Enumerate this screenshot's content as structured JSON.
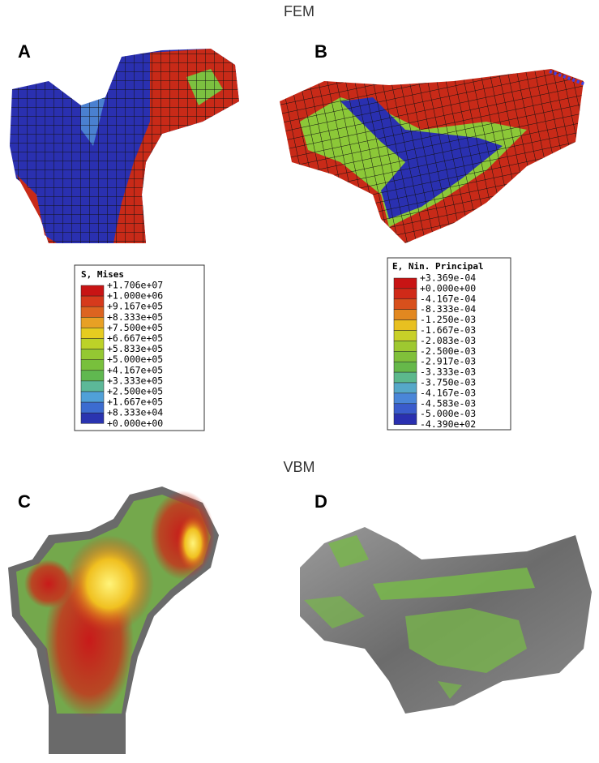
{
  "sections": [
    {
      "title": "FEM",
      "panels": [
        {
          "label": "A",
          "legend": {
            "title": "S, Mises",
            "labels": [
              "+1.706e+07",
              "+1.000e+06",
              "+9.167e+05",
              "+8.333e+05",
              "+7.500e+05",
              "+6.667e+05",
              "+5.833e+05",
              "+5.000e+05",
              "+4.167e+05",
              "+3.333e+05",
              "+2.500e+05",
              "+1.667e+05",
              "+8.333e+04",
              "+0.000e+00"
            ],
            "colors": [
              "#c81414",
              "#d63a1c",
              "#dc6420",
              "#e8a024",
              "#e6cc20",
              "#bcd228",
              "#94c832",
              "#78c03c",
              "#60b850",
              "#5cb898",
              "#50a0d8",
              "#3c6cd0",
              "#2a34b0"
            ]
          }
        },
        {
          "label": "B",
          "legend": {
            "title": "E, Nin. Principal",
            "labels": [
              "+3.369e-04",
              "+0.000e+00",
              "-4.167e-04",
              "-8.333e-04",
              "-1.250e-03",
              "-1.667e-03",
              "-2.083e-03",
              "-2.500e-03",
              "-2.917e-03",
              "-3.333e-03",
              "-3.750e-03",
              "-4.167e-03",
              "-4.583e-03",
              "-5.000e-03",
              "-4.390e+02"
            ],
            "colors": [
              "#c81414",
              "#d02a18",
              "#d8501c",
              "#e28820",
              "#e8c020",
              "#c8d028",
              "#9ec830",
              "#80c03a",
              "#66b84a",
              "#5cb88c",
              "#56a8c8",
              "#4a86d8",
              "#3a5ccc",
              "#2a30b0"
            ]
          }
        }
      ]
    },
    {
      "title": "VBM",
      "panels": [
        {
          "label": "C"
        },
        {
          "label": "D"
        }
      ]
    }
  ]
}
